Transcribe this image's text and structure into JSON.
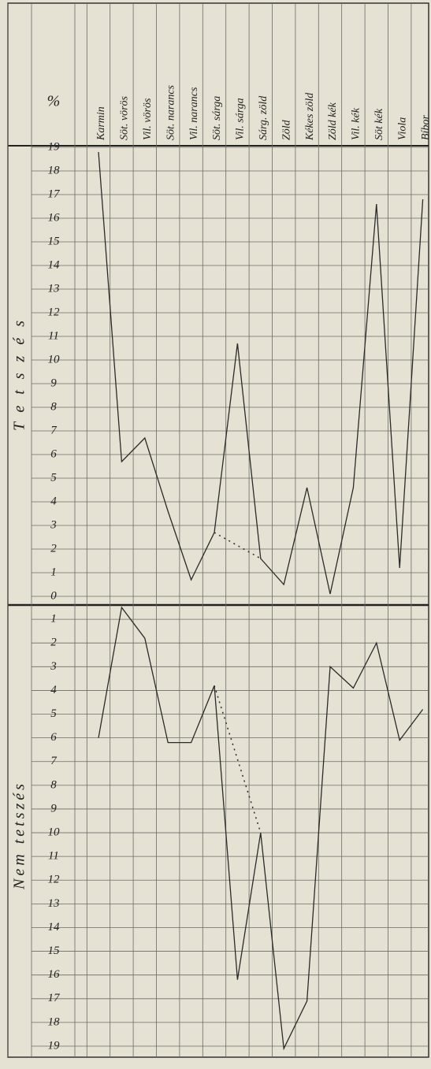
{
  "chart_data": {
    "type": "line",
    "y_unit_label": "%",
    "categories": [
      "Karmin",
      "Söt. vörös",
      "Vil. vörös",
      "Söt. narancs",
      "Vil. narancs",
      "Söt. sárga",
      "Vil. sárga",
      "Sárg. zöld",
      "Zöld",
      "Kékes zöld",
      "Zöld kék",
      "Vil. kék",
      "Söt kék",
      "Viola",
      "Bíbor"
    ],
    "series": [
      {
        "name": "Tetszés",
        "color": "#2a2a2a",
        "axis": "y",
        "values": [
          18.8,
          5.7,
          6.7,
          3.6,
          0.7,
          2.7,
          10.7,
          1.6,
          0.5,
          4.6,
          0.1,
          4.6,
          16.6,
          1.2,
          16.8
        ]
      },
      {
        "name": "Nem tetszés",
        "color": "#2a2a2a",
        "axis": "y2",
        "values": [
          6,
          0.5,
          1.8,
          6.2,
          6.2,
          3.8,
          16.2,
          10,
          19.1,
          17.1,
          3,
          3.9,
          2,
          6.1,
          4.8
        ]
      }
    ],
    "ylim": [
      0,
      19
    ],
    "yticks": [
      0,
      1,
      2,
      3,
      4,
      5,
      6,
      7,
      8,
      9,
      10,
      11,
      12,
      13,
      14,
      15,
      16,
      17,
      18,
      19
    ],
    "y2lim": [
      0,
      19
    ],
    "y2ticks": [
      1,
      2,
      3,
      4,
      5,
      6,
      7,
      8,
      9,
      10,
      11,
      12,
      13,
      14,
      15,
      16,
      17,
      18,
      19
    ],
    "grid": true
  }
}
